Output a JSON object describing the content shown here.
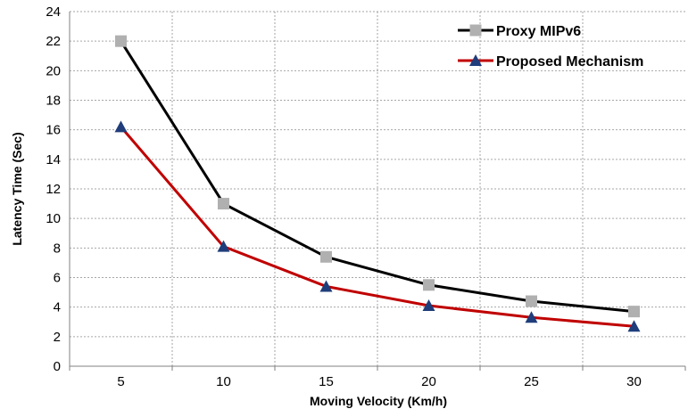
{
  "chart_data": {
    "type": "line",
    "title": "",
    "xlabel": "Moving Velocity (Km/h)",
    "ylabel": "Latency Time (Sec)",
    "categories": [
      "5",
      "10",
      "15",
      "20",
      "25",
      "30"
    ],
    "ylim": [
      0,
      24
    ],
    "yticks": [
      0,
      2,
      4,
      6,
      8,
      10,
      12,
      14,
      16,
      18,
      20,
      22,
      24
    ],
    "grid": true,
    "legend_position": "top-right",
    "series": [
      {
        "name": "Proxy MIPv6",
        "color": "#000000",
        "marker": "square",
        "marker_color": "#b0b0b0",
        "values": [
          22.0,
          11.0,
          7.4,
          5.5,
          4.4,
          3.7
        ]
      },
      {
        "name": "Proposed Mechanism",
        "color": "#c00000",
        "marker": "triangle",
        "marker_color": "#1f3d7a",
        "values": [
          16.2,
          8.1,
          5.4,
          4.1,
          3.3,
          2.7
        ]
      }
    ]
  }
}
